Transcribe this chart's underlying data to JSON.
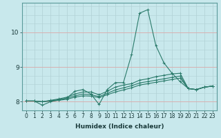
{
  "xlabel": "Humidex (Indice chaleur)",
  "background_color": "#c8e8ec",
  "line_color": "#2a7a6a",
  "xlim": [
    -0.5,
    23.5
  ],
  "ylim": [
    7.75,
    10.85
  ],
  "yticks": [
    8,
    9,
    10
  ],
  "xticks": [
    0,
    1,
    2,
    3,
    4,
    5,
    6,
    7,
    8,
    9,
    10,
    11,
    12,
    13,
    14,
    15,
    16,
    17,
    18,
    19,
    20,
    21,
    22,
    23
  ],
  "line1_y": [
    8.02,
    8.02,
    7.9,
    8.0,
    8.05,
    8.1,
    8.3,
    8.35,
    8.22,
    7.92,
    8.35,
    8.55,
    8.55,
    9.35,
    10.55,
    10.65,
    9.62,
    9.12,
    8.82,
    8.58,
    8.38,
    8.35,
    8.42,
    8.45
  ],
  "line2_y": [
    8.02,
    8.02,
    8.0,
    8.04,
    8.08,
    8.13,
    8.22,
    8.28,
    8.28,
    8.2,
    8.3,
    8.42,
    8.48,
    8.52,
    8.62,
    8.66,
    8.72,
    8.76,
    8.8,
    8.82,
    8.38,
    8.35,
    8.42,
    8.45
  ],
  "line3_y": [
    8.02,
    8.02,
    8.0,
    8.03,
    8.06,
    8.1,
    8.17,
    8.22,
    8.2,
    8.15,
    8.24,
    8.34,
    8.4,
    8.46,
    8.54,
    8.58,
    8.62,
    8.66,
    8.7,
    8.74,
    8.38,
    8.35,
    8.42,
    8.45
  ],
  "line4_y": [
    8.02,
    8.02,
    8.0,
    8.02,
    8.04,
    8.07,
    8.13,
    8.17,
    8.16,
    8.12,
    8.2,
    8.28,
    8.34,
    8.4,
    8.48,
    8.52,
    8.56,
    8.6,
    8.64,
    8.68,
    8.38,
    8.35,
    8.42,
    8.45
  ],
  "markersize": 2.0,
  "linewidth": 0.8,
  "hgrid_color": "#d8b0b0",
  "vgrid_color": "#b0d0d4",
  "xlabel_fontsize": 6.5,
  "tick_fontsize": 5.5
}
